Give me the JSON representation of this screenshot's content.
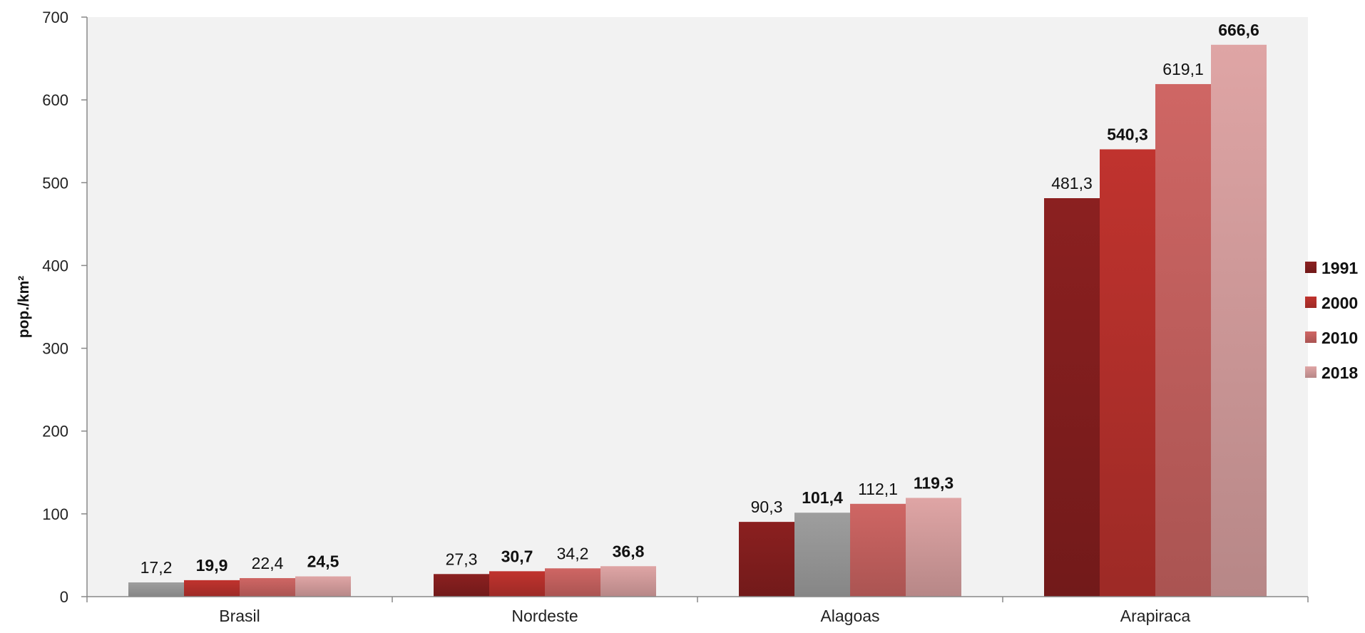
{
  "chart_data": {
    "type": "bar",
    "ylabel": "pop./km²",
    "ylim": [
      0,
      700
    ],
    "yticks": [
      "0",
      "100",
      "200",
      "300",
      "400",
      "500",
      "600",
      "700"
    ],
    "ytick_values": [
      0,
      100,
      200,
      300,
      400,
      500,
      600,
      700
    ],
    "grid": false,
    "legend_position": "right",
    "categories": [
      "Brasil",
      "Nordeste",
      "Alagoas",
      "Arapiraca"
    ],
    "series": [
      {
        "name": "1991",
        "color": "#8b2020",
        "values": [
          17.2,
          27.3,
          90.3,
          481.3
        ],
        "labels": [
          "17,2",
          "27,3",
          "90,3",
          "481,3"
        ],
        "bold_labels": false
      },
      {
        "name": "2000",
        "color": "#c0332e",
        "values": [
          19.9,
          30.7,
          101.4,
          540.3
        ],
        "labels": [
          "19,9",
          "30,7",
          "101,4",
          "540,3"
        ],
        "bold_labels": true
      },
      {
        "name": "2010",
        "color": "#cf6664",
        "values": [
          22.4,
          34.2,
          112.1,
          619.1
        ],
        "labels": [
          "22,4",
          "34,2",
          "112,1",
          "619,1"
        ],
        "bold_labels": false
      },
      {
        "name": "2018",
        "color": "#dfa5a5",
        "values": [
          24.5,
          36.8,
          119.3,
          666.6
        ],
        "labels": [
          "24,5",
          "36,8",
          "119,3",
          "666,6"
        ],
        "bold_labels": true
      }
    ],
    "highlighted_bars": [
      [
        0,
        0
      ],
      [
        2,
        1
      ]
    ],
    "highlight_color": "#9e9e9e",
    "plot_background": "#f2f2f2"
  }
}
